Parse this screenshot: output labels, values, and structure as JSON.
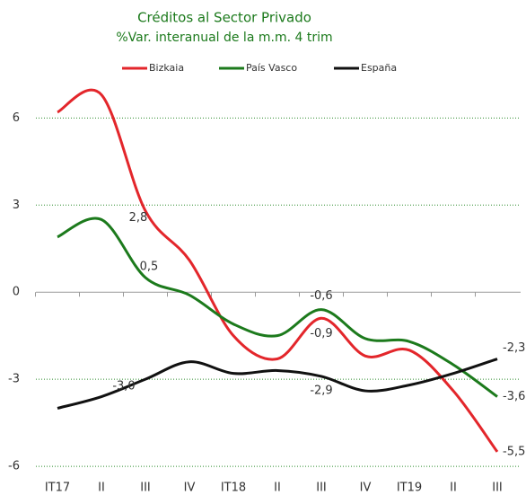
{
  "chart_data": {
    "type": "line",
    "title": "Créditos al Sector Privado",
    "subtitle": "%Var. interanual de la m.m. 4 trim",
    "categories": [
      "IT17",
      "II",
      "III",
      "IV",
      "IT18",
      "II",
      "III",
      "IV",
      "IT19",
      "II",
      "III"
    ],
    "series": [
      {
        "name": "Bizkaia",
        "color": "#e3262b",
        "values": [
          6.2,
          6.8,
          2.8,
          1.1,
          -1.5,
          -2.3,
          -0.9,
          -2.2,
          -2.0,
          -3.4,
          -5.5
        ],
        "value_labels": [
          null,
          null,
          "2,8",
          null,
          null,
          null,
          "-0,9",
          null,
          null,
          null,
          "-5,5"
        ]
      },
      {
        "name": "País Vasco",
        "color": "#1c7a1c",
        "values": [
          1.9,
          2.5,
          0.5,
          -0.1,
          -1.1,
          -1.5,
          -0.6,
          -1.6,
          -1.7,
          -2.5,
          -3.6
        ],
        "value_labels": [
          null,
          null,
          "0,5",
          null,
          null,
          null,
          "-0,6",
          null,
          null,
          null,
          "-3,6"
        ]
      },
      {
        "name": "España",
        "color": "#111111",
        "values": [
          -4.0,
          -3.6,
          -3.0,
          -2.4,
          -2.8,
          -2.7,
          -2.9,
          -3.4,
          -3.2,
          -2.8,
          -2.3
        ],
        "value_labels": [
          null,
          null,
          "-3,0",
          null,
          null,
          null,
          "-2,9",
          null,
          null,
          null,
          "-2,3"
        ]
      }
    ],
    "ylim": [
      -6.4,
      7.0
    ],
    "yticks": [
      6,
      3,
      0,
      -3,
      -6
    ],
    "grid": true,
    "legend": "top"
  }
}
